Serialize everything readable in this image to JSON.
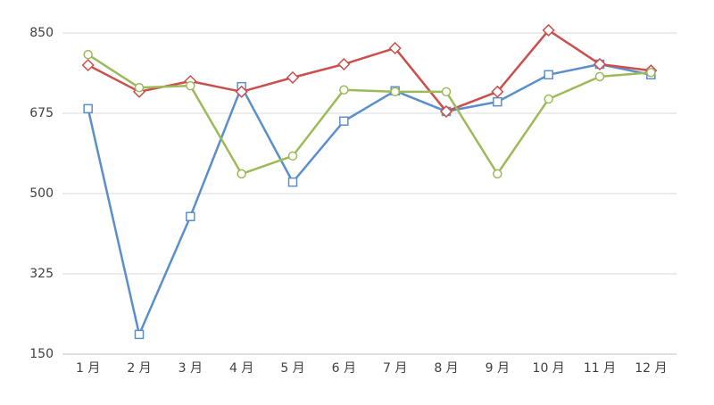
{
  "chart_data": {
    "type": "line",
    "categories": [
      "1 月",
      "2 月",
      "3 月",
      "4 月",
      "5 月",
      "6 月",
      "7 月",
      "8 月",
      "9 月",
      "10 月",
      "11 月",
      "12 月"
    ],
    "series": [
      {
        "color": "#5b8fcb",
        "marker": "square",
        "values": [
          685,
          193,
          450,
          733,
          525,
          658,
          724,
          679,
          700,
          759,
          782,
          759
        ]
      },
      {
        "color": "#c9504d",
        "marker": "diamond",
        "values": [
          780,
          722,
          745,
          722,
          753,
          782,
          817,
          679,
          722,
          856,
          782,
          768
        ]
      },
      {
        "color": "#9bbb59",
        "marker": "circle",
        "values": [
          803,
          731,
          735,
          543,
          582,
          726,
          722,
          722,
          543,
          706,
          755,
          764
        ]
      }
    ],
    "ylim": [
      150,
      850
    ],
    "yticks": [
      150,
      325,
      500,
      675,
      850
    ],
    "grid": true
  }
}
